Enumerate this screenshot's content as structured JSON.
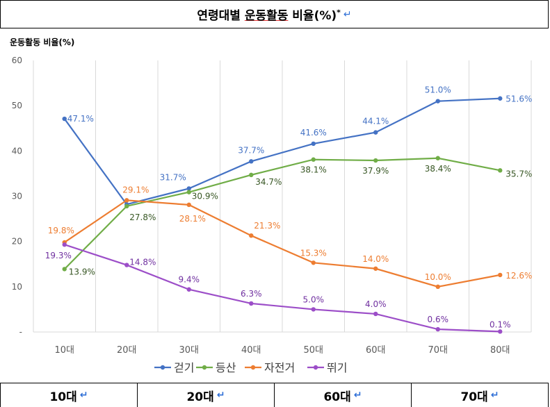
{
  "header": {
    "title_part1": "연령대별",
    "title_part2": "운동활동",
    "title_part3": "비율(%)",
    "footnote_mark": "*"
  },
  "return_mark": "↵",
  "chart_data": {
    "type": "line",
    "title": "",
    "ylabel": "운동활동 비율(%)",
    "xlabel": "",
    "categories": [
      "10대",
      "20대",
      "30대",
      "40대",
      "50대",
      "60대",
      "70대",
      "80대"
    ],
    "ylim": [
      0,
      60
    ],
    "yticks": [
      "-",
      "10",
      "20",
      "30",
      "40",
      "50",
      "60"
    ],
    "grid": "vertical",
    "legend_position": "bottom",
    "series": [
      {
        "name": "걷기",
        "color": "#4472c4",
        "values": [
          47.1,
          28.2,
          31.7,
          37.7,
          41.6,
          44.1,
          51.0,
          51.6
        ],
        "labels": [
          "47.1%",
          "",
          "31.7%",
          "37.7%",
          "41.6%",
          "44.1%",
          "51.0%",
          "51.6%"
        ]
      },
      {
        "name": "등산",
        "color": "#70ad47",
        "values": [
          13.9,
          27.8,
          30.9,
          34.7,
          38.1,
          37.9,
          38.4,
          35.7
        ],
        "labels": [
          "13.9%",
          "27.8%",
          "30.9%",
          "34.7%",
          "38.1%",
          "37.9%",
          "38.4%",
          "35.7%"
        ]
      },
      {
        "name": "자전거",
        "color": "#ed7d31",
        "values": [
          19.8,
          29.1,
          28.1,
          21.3,
          15.3,
          14.0,
          10.0,
          12.6
        ],
        "labels": [
          "19.8%",
          "29.1%",
          "28.1%",
          "21.3%",
          "15.3%",
          "14.0%",
          "10.0%",
          "12.6%"
        ]
      },
      {
        "name": "뛰기",
        "color": "#9c4ec8",
        "values": [
          19.3,
          14.8,
          9.4,
          6.3,
          5.0,
          4.0,
          0.6,
          0.1
        ],
        "labels": [
          "19.3%",
          "14.8%",
          "9.4%",
          "6.3%",
          "5.0%",
          "4.0%",
          "0.6%",
          "0.1%"
        ]
      }
    ]
  },
  "bottom_row": [
    "10대",
    "20대",
    "60대",
    "70대"
  ]
}
